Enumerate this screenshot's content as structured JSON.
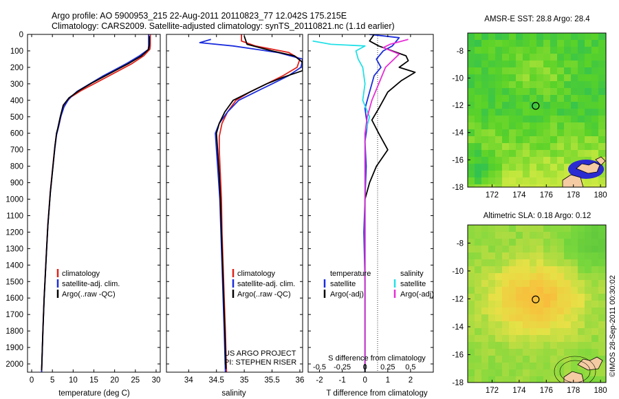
{
  "header": {
    "line1": "Argo profile: AO 5900953_215 22-Aug-2011 20110823_77 12.042S 175.215E",
    "line2": "Climatology: CARS2009. Satellite-adjusted climatology: synTS_20110821.nc (1.1d earlier)"
  },
  "colors": {
    "climatology": "#e0201a",
    "satellite": "#1a2cdc",
    "argo": "#000000",
    "salinity_satellite": "#22e0e6",
    "salinity_argo": "#e62ed6"
  },
  "chart_data": [
    {
      "type": "line",
      "panel": "temperature",
      "xlabel": "temperature (deg C)",
      "xlim": [
        -1,
        31
      ],
      "xticks": [
        0,
        5,
        10,
        15,
        20,
        25,
        30
      ],
      "ylim": [
        2050,
        0
      ],
      "yticks": [
        0,
        100,
        200,
        300,
        400,
        500,
        600,
        700,
        800,
        900,
        1000,
        1100,
        1200,
        1300,
        1400,
        1500,
        1600,
        1700,
        1800,
        1900,
        2000
      ],
      "legend": [
        "climatology",
        "satellite-adj. clim.",
        "Argo(..raw -QC)"
      ],
      "series": [
        {
          "name": "climatology",
          "color": "#e0201a",
          "points": [
            [
              28.6,
              0
            ],
            [
              28.6,
              70
            ],
            [
              28.5,
              90
            ],
            [
              27,
              130
            ],
            [
              24,
              180
            ],
            [
              21,
              220
            ],
            [
              18,
              260
            ],
            [
              15,
              300
            ],
            [
              12,
              340
            ],
            [
              9.5,
              380
            ],
            [
              8,
              420
            ],
            [
              7.2,
              480
            ],
            [
              6.5,
              560
            ],
            [
              6,
              600
            ],
            [
              5.6,
              680
            ],
            [
              5.3,
              750
            ],
            [
              4.9,
              850
            ],
            [
              4.5,
              950
            ],
            [
              4.2,
              1050
            ],
            [
              3.9,
              1150
            ],
            [
              3.6,
              1300
            ],
            [
              3.3,
              1450
            ],
            [
              3.0,
              1600
            ],
            [
              2.7,
              1800
            ],
            [
              2.4,
              2050
            ]
          ]
        },
        {
          "name": "satellite-adj. clim.",
          "color": "#1a2cdc",
          "points": [
            [
              28.2,
              0
            ],
            [
              28.2,
              70
            ],
            [
              28.1,
              92
            ],
            [
              26,
              130
            ],
            [
              23,
              175
            ],
            [
              20,
              215
            ],
            [
              17,
              255
            ],
            [
              14,
              300
            ],
            [
              11,
              345
            ],
            [
              9,
              390
            ],
            [
              7.8,
              440
            ],
            [
              7,
              500
            ],
            [
              6.4,
              570
            ],
            [
              6,
              610
            ],
            [
              5.6,
              690
            ],
            [
              5.3,
              760
            ],
            [
              4.9,
              860
            ],
            [
              4.5,
              960
            ],
            [
              4.2,
              1060
            ],
            [
              3.9,
              1160
            ],
            [
              3.6,
              1310
            ],
            [
              3.3,
              1460
            ],
            [
              3.0,
              1610
            ],
            [
              2.7,
              1810
            ],
            [
              2.4,
              2050
            ]
          ]
        },
        {
          "name": "Argo(..raw -QC)",
          "color": "#000000",
          "points": [
            [
              28.4,
              10
            ],
            [
              28.4,
              60
            ],
            [
              28.2,
              90
            ],
            [
              26.5,
              130
            ],
            [
              23.5,
              175
            ],
            [
              20.5,
              215
            ],
            [
              17.5,
              255
            ],
            [
              14.5,
              295
            ],
            [
              11.5,
              340
            ],
            [
              9,
              385
            ],
            [
              7.6,
              430
            ],
            [
              6.9,
              500
            ],
            [
              6.3,
              570
            ],
            [
              6,
              600
            ],
            [
              5.6,
              680
            ],
            [
              5.3,
              760
            ],
            [
              4.9,
              860
            ],
            [
              4.5,
              960
            ],
            [
              4.2,
              1060
            ],
            [
              3.9,
              1160
            ],
            [
              3.6,
              1310
            ],
            [
              3.3,
              1460
            ],
            [
              3.0,
              1610
            ],
            [
              2.7,
              1810
            ],
            [
              2.4,
              2040
            ]
          ]
        }
      ]
    },
    {
      "type": "line",
      "panel": "salinity",
      "xlabel": "salinity",
      "xlim": [
        33.6,
        36.05
      ],
      "xticks": [
        34,
        34.5,
        35,
        35.5,
        36
      ],
      "ylim": [
        2050,
        0
      ],
      "legend": [
        "climatology",
        "satellite-adj. clim.",
        "Argo(..raw -QC)"
      ],
      "annotation": [
        "US ARGO PROJECT",
        "PI: STEPHEN RISER"
      ],
      "series": [
        {
          "name": "climatology",
          "color": "#e0201a",
          "points": [
            [
              34.95,
              0
            ],
            [
              34.95,
              40
            ],
            [
              35.2,
              70
            ],
            [
              35.8,
              110
            ],
            [
              36.0,
              150
            ],
            [
              35.95,
              200
            ],
            [
              35.7,
              250
            ],
            [
              35.4,
              300
            ],
            [
              35.1,
              350
            ],
            [
              34.85,
              400
            ],
            [
              34.7,
              470
            ],
            [
              34.6,
              540
            ],
            [
              34.55,
              620
            ],
            [
              34.55,
              700
            ],
            [
              34.57,
              850
            ],
            [
              34.59,
              1000
            ],
            [
              34.6,
              1200
            ],
            [
              34.62,
              1400
            ],
            [
              34.64,
              1600
            ],
            [
              34.66,
              1800
            ],
            [
              34.68,
              2050
            ]
          ]
        },
        {
          "name": "satellite-adj. clim.",
          "color": "#1a2cdc",
          "points": [
            [
              34.4,
              30
            ],
            [
              34.2,
              50
            ],
            [
              34.8,
              70
            ],
            [
              35.6,
              110
            ],
            [
              36.05,
              150
            ],
            [
              36.02,
              200
            ],
            [
              35.8,
              250
            ],
            [
              35.5,
              300
            ],
            [
              35.2,
              350
            ],
            [
              34.9,
              400
            ],
            [
              34.7,
              470
            ],
            [
              34.55,
              540
            ],
            [
              34.48,
              600
            ],
            [
              34.5,
              700
            ],
            [
              34.53,
              850
            ],
            [
              34.56,
              1000
            ],
            [
              34.58,
              1200
            ],
            [
              34.6,
              1400
            ],
            [
              34.62,
              1600
            ],
            [
              34.64,
              1800
            ],
            [
              34.66,
              2050
            ]
          ]
        },
        {
          "name": "Argo(..raw -QC)",
          "color": "#000000",
          "points": [
            [
              35.0,
              10
            ],
            [
              35.05,
              60
            ],
            [
              35.5,
              100
            ],
            [
              35.9,
              130
            ],
            [
              36.05,
              170
            ],
            [
              36.05,
              220
            ],
            [
              35.7,
              260
            ],
            [
              35.4,
              300
            ],
            [
              35.1,
              350
            ],
            [
              34.8,
              400
            ],
            [
              34.65,
              470
            ],
            [
              34.55,
              540
            ],
            [
              34.5,
              600
            ],
            [
              34.52,
              700
            ],
            [
              34.55,
              850
            ],
            [
              34.57,
              1000
            ],
            [
              34.59,
              1200
            ],
            [
              34.61,
              1400
            ],
            [
              34.63,
              1600
            ],
            [
              34.65,
              1800
            ],
            [
              34.67,
              2030
            ]
          ]
        }
      ]
    },
    {
      "type": "line",
      "panel": "difference",
      "xlabel": "T difference from climatology",
      "xlabel_top": "S difference from climatology",
      "xlim": [
        -2.5,
        3
      ],
      "xticks": [
        -2,
        -1,
        0,
        1,
        2
      ],
      "xticks_top": [
        -0.5,
        -0.25,
        0,
        0.25,
        0.5
      ],
      "ylim": [
        2050,
        0
      ],
      "legend_left": {
        "title": "temperature",
        "items": [
          "satellite",
          "Argo(-adj)"
        ]
      },
      "legend_right": {
        "title": "salinity",
        "items": [
          "satellite",
          "Argo(-adj)"
        ]
      },
      "series": [
        {
          "name": "temperature satellite",
          "color": "#1a2cdc",
          "points": [
            [
              0.2,
              0
            ],
            [
              1.5,
              20
            ],
            [
              1.2,
              70
            ],
            [
              0.8,
              100
            ],
            [
              0.5,
              150
            ],
            [
              0.7,
              200
            ],
            [
              0.4,
              250
            ],
            [
              0.2,
              350
            ],
            [
              0,
              450
            ],
            [
              0.1,
              550
            ],
            [
              0,
              650
            ],
            [
              0.05,
              800
            ],
            [
              0,
              1000
            ],
            [
              -0.05,
              1200
            ],
            [
              0,
              1500
            ],
            [
              0,
              1800
            ],
            [
              0,
              2050
            ]
          ]
        },
        {
          "name": "temperature Argo(-adj)",
          "color": "#000000",
          "points": [
            [
              0.4,
              0
            ],
            [
              0.2,
              40
            ],
            [
              0.6,
              70
            ],
            [
              1.8,
              130
            ],
            [
              1.9,
              160
            ],
            [
              1.5,
              200
            ],
            [
              2.2,
              230
            ],
            [
              1.6,
              280
            ],
            [
              1.0,
              350
            ],
            [
              0.6,
              450
            ],
            [
              0.3,
              520
            ],
            [
              0.6,
              600
            ],
            [
              1.0,
              700
            ],
            [
              0.5,
              800
            ],
            [
              0.2,
              900
            ],
            [
              0,
              1000
            ],
            [
              0,
              1200
            ],
            [
              0,
              1500
            ],
            [
              0,
              1800
            ],
            [
              0,
              2050
            ]
          ]
        },
        {
          "name": "salinity satellite",
          "color": "#22e0e6",
          "points": [
            [
              -2.3,
              40
            ],
            [
              -1.5,
              60
            ],
            [
              0,
              70
            ],
            [
              -0.4,
              100
            ],
            [
              -0.3,
              150
            ],
            [
              -0.1,
              200
            ],
            [
              0,
              300
            ],
            [
              -0.1,
              400
            ],
            [
              0.2,
              500
            ],
            [
              0,
              600
            ],
            [
              0,
              800
            ],
            [
              0,
              1000
            ],
            [
              0,
              1300
            ],
            [
              0,
              1600
            ],
            [
              0,
              2000
            ]
          ]
        },
        {
          "name": "salinity Argo(-adj)",
          "color": "#e62ed6",
          "points": [
            [
              1.9,
              30
            ],
            [
              1.1,
              60
            ],
            [
              0.8,
              80
            ],
            [
              1.5,
              120
            ],
            [
              0.9,
              200
            ],
            [
              0.6,
              300
            ],
            [
              0.3,
              400
            ],
            [
              0.1,
              500
            ],
            [
              0,
              600
            ],
            [
              0,
              800
            ],
            [
              0,
              1000
            ],
            [
              0,
              1300
            ],
            [
              0,
              1600
            ],
            [
              0,
              2000
            ]
          ]
        }
      ]
    },
    {
      "type": "heatmap",
      "panel": "sst-map",
      "title": "AMSR-E SST: 28.8 Argo: 28.4",
      "xlim": [
        170.2,
        180.4
      ],
      "ylim": [
        -18,
        -6.7
      ],
      "xticks": [
        172,
        174,
        176,
        178,
        180
      ],
      "yticks": [
        -8,
        -10,
        -12,
        -14,
        -16,
        -18
      ],
      "marker": [
        175.215,
        -12.042
      ]
    },
    {
      "type": "heatmap",
      "panel": "sla-map",
      "title": "Altimetric SLA: 0.18 Argo: 0.12",
      "xlim": [
        170.2,
        180.4
      ],
      "ylim": [
        -18,
        -6.7
      ],
      "xticks": [
        172,
        174,
        176,
        178,
        180
      ],
      "yticks": [
        -8,
        -10,
        -12,
        -14,
        -16,
        -18
      ],
      "marker": [
        175.215,
        -12.042
      ]
    }
  ],
  "footer": {
    "stamp": "©IMOS 28-Sep-2011 00:30:02"
  }
}
